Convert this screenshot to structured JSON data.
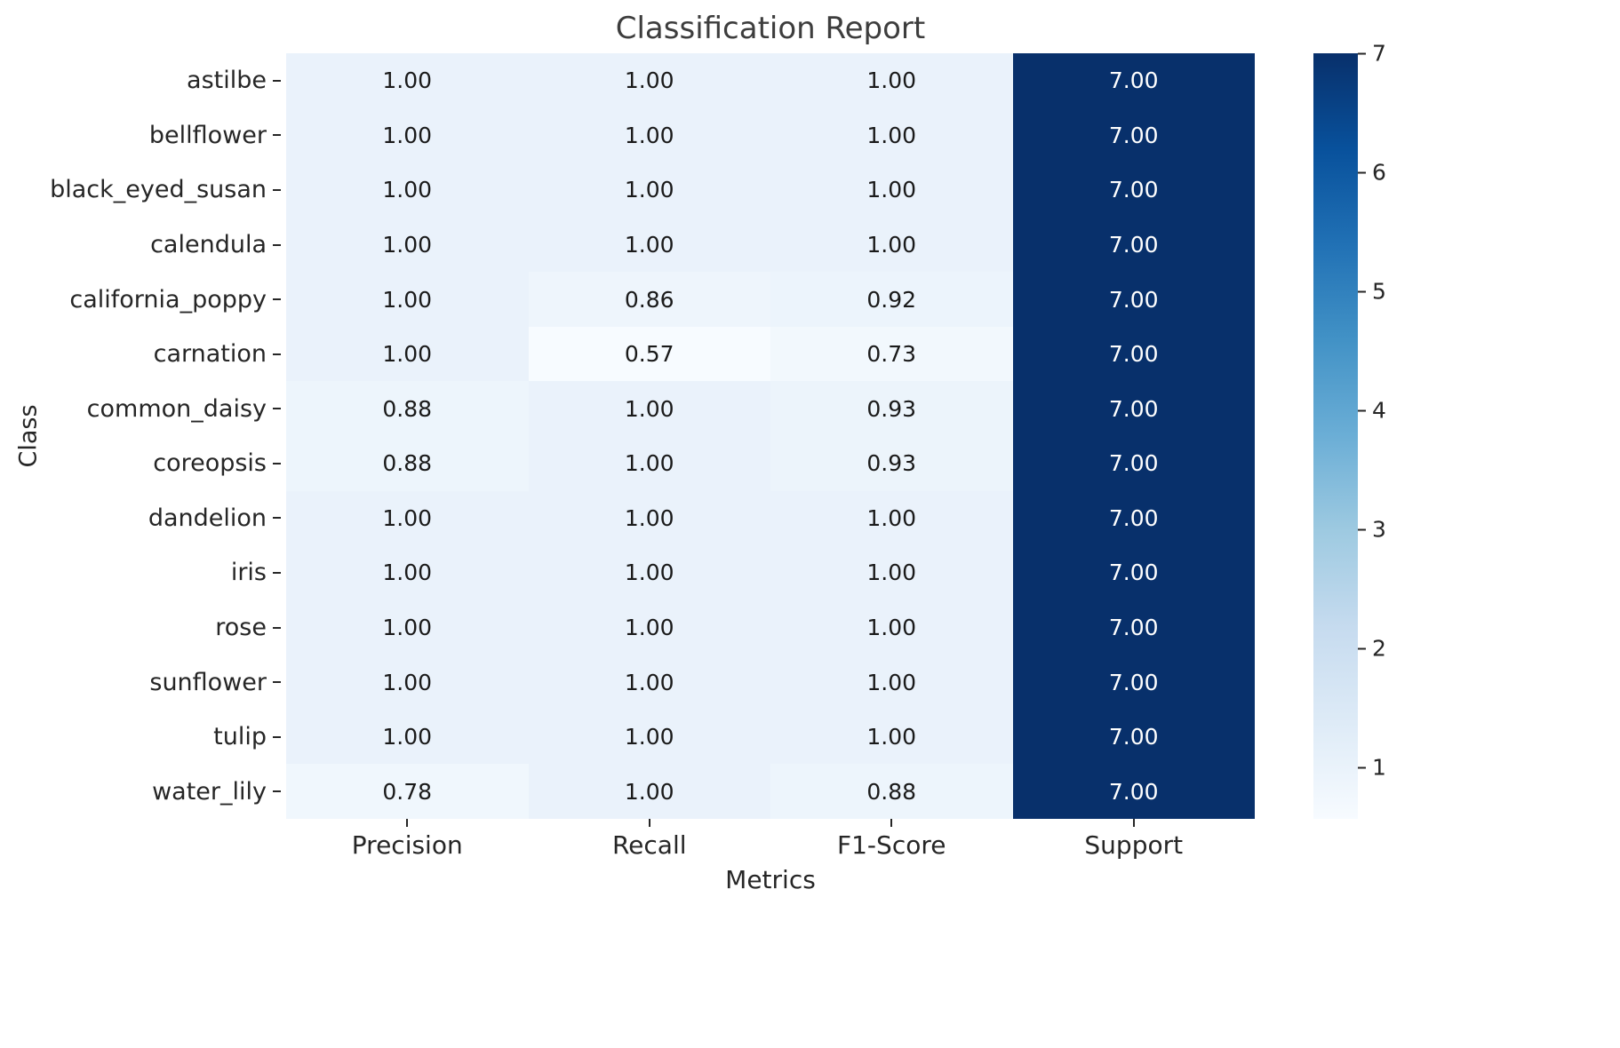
{
  "chart_data": {
    "type": "heatmap",
    "title": "Classification Report",
    "xlabel": "Metrics",
    "ylabel": "Class",
    "columns": [
      "Precision",
      "Recall",
      "F1-Score",
      "Support"
    ],
    "rows": [
      "astilbe",
      "bellflower",
      "black_eyed_susan",
      "calendula",
      "california_poppy",
      "carnation",
      "common_daisy",
      "coreopsis",
      "dandelion",
      "iris",
      "rose",
      "sunflower",
      "tulip",
      "water_lily"
    ],
    "values": [
      [
        1.0,
        1.0,
        1.0,
        7.0
      ],
      [
        1.0,
        1.0,
        1.0,
        7.0
      ],
      [
        1.0,
        1.0,
        1.0,
        7.0
      ],
      [
        1.0,
        1.0,
        1.0,
        7.0
      ],
      [
        1.0,
        0.86,
        0.92,
        7.0
      ],
      [
        1.0,
        0.57,
        0.73,
        7.0
      ],
      [
        0.88,
        1.0,
        0.93,
        7.0
      ],
      [
        0.88,
        1.0,
        0.93,
        7.0
      ],
      [
        1.0,
        1.0,
        1.0,
        7.0
      ],
      [
        1.0,
        1.0,
        1.0,
        7.0
      ],
      [
        1.0,
        1.0,
        1.0,
        7.0
      ],
      [
        1.0,
        1.0,
        1.0,
        7.0
      ],
      [
        1.0,
        1.0,
        1.0,
        7.0
      ],
      [
        0.78,
        1.0,
        0.88,
        7.0
      ]
    ],
    "value_decimals": 2,
    "vmin": 0.57,
    "vmax": 7.0,
    "colormap": "Blues",
    "colormap_stops": [
      {
        "pos": 0.0,
        "color": "#f7fbff"
      },
      {
        "pos": 0.125,
        "color": "#deebf7"
      },
      {
        "pos": 0.25,
        "color": "#c6dbef"
      },
      {
        "pos": 0.375,
        "color": "#9ecae1"
      },
      {
        "pos": 0.5,
        "color": "#6baed6"
      },
      {
        "pos": 0.625,
        "color": "#4292c6"
      },
      {
        "pos": 0.75,
        "color": "#2171b5"
      },
      {
        "pos": 0.875,
        "color": "#08519c"
      },
      {
        "pos": 1.0,
        "color": "#08306b"
      }
    ],
    "colorbar_ticks": [
      1,
      2,
      3,
      4,
      5,
      6,
      7
    ],
    "annotation_color_dark": "#1a1a1a",
    "annotation_color_light": "#ffffff",
    "tick_color": "#262626",
    "title_color": "#3d3d3d",
    "legend_position": "right",
    "grid": false
  }
}
